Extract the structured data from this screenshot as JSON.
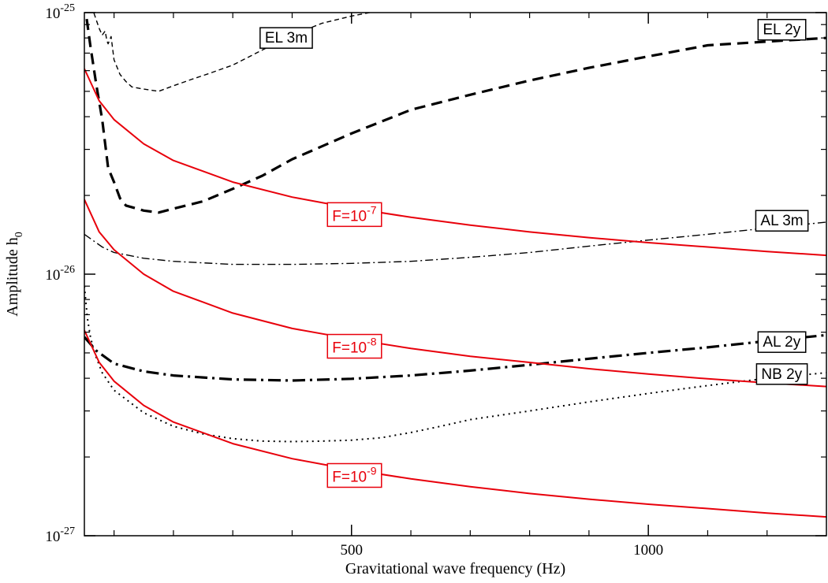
{
  "chart_data": {
    "type": "line",
    "xlabel": "Gravitational wave frequency (Hz)",
    "ylabel": {
      "base": "Amplitude h",
      "sub": "0"
    },
    "xlim": [
      50,
      1300
    ],
    "ylim": [
      1e-27,
      1e-25
    ],
    "y_scale": "log",
    "grid": false,
    "x_ticks": [
      {
        "value": 500,
        "label": "500"
      },
      {
        "value": 1000,
        "label": "1000"
      }
    ],
    "x_minor_ticks": [
      100,
      200,
      300,
      400,
      600,
      700,
      800,
      900,
      1100,
      1200
    ],
    "y_ticks": [
      {
        "value": 1e-25,
        "base": "10",
        "exp": "-25"
      },
      {
        "value": 1e-26,
        "base": "10",
        "exp": "-26"
      },
      {
        "value": 1e-27,
        "base": "10",
        "exp": "-27"
      }
    ],
    "series": [
      {
        "name": "EL 3m",
        "color": "#000000",
        "style": "thin-dash",
        "x": [
          50,
          62,
          75,
          80,
          85,
          88,
          90,
          95,
          100,
          110,
          120,
          130,
          150,
          175,
          200,
          230,
          260,
          300,
          350,
          400,
          450,
          500,
          550
        ],
        "y": [
          1.1e-25,
          1.06e-25,
          8.7e-26,
          8.2e-26,
          8.5e-26,
          7.8e-26,
          7.6e-26,
          8.1e-26,
          6.6e-26,
          5.8e-26,
          5.45e-26,
          5.2e-26,
          5.1e-26,
          5e-26,
          5.25e-26,
          5.55e-26,
          5.85e-26,
          6.3e-26,
          7.2e-26,
          8.2e-26,
          9.1e-26,
          9.7e-26,
          1.02e-25
        ]
      },
      {
        "name": "EL 2y",
        "color": "#000000",
        "style": "thick-dash",
        "x": [
          50,
          60,
          70,
          80,
          90,
          100,
          110,
          120,
          150,
          175,
          200,
          250,
          300,
          350,
          400,
          500,
          600,
          700,
          800,
          900,
          1000,
          1100,
          1200,
          1300
        ],
        "y": [
          1.1e-25,
          7.5e-26,
          5.3e-26,
          3.9e-26,
          2.55e-26,
          2.25e-26,
          1.95e-26,
          1.83e-26,
          1.75e-26,
          1.72e-26,
          1.78e-26,
          1.9e-26,
          2.12e-26,
          2.38e-26,
          2.75e-26,
          3.45e-26,
          4.25e-26,
          4.85e-26,
          5.5e-26,
          6.15e-26,
          6.8e-26,
          7.5e-26,
          7.75e-26,
          8e-26
        ]
      },
      {
        "name": "AL 3m",
        "color": "#000000",
        "style": "thin-dash-dot",
        "x": [
          50,
          80,
          100,
          150,
          200,
          300,
          400,
          500,
          600,
          700,
          800,
          900,
          1000,
          1100,
          1200,
          1300
        ],
        "y": [
          1.42e-26,
          1.27e-26,
          1.21e-26,
          1.15e-26,
          1.12e-26,
          1.09e-26,
          1.09e-26,
          1.1e-26,
          1.12e-26,
          1.16e-26,
          1.21e-26,
          1.28e-26,
          1.35e-26,
          1.42e-26,
          1.5e-26,
          1.58e-26
        ]
      },
      {
        "name": "AL 2y",
        "color": "#000000",
        "style": "thick-dash-dot",
        "x": [
          50,
          70,
          100,
          150,
          200,
          300,
          400,
          500,
          600,
          700,
          800,
          900,
          1000,
          1100,
          1200,
          1300
        ],
        "y": [
          5.75e-27,
          5.1e-27,
          4.55e-27,
          4.25e-27,
          4.1e-27,
          3.96e-27,
          3.92e-27,
          3.98e-27,
          4.1e-27,
          4.28e-27,
          4.5e-27,
          4.75e-27,
          5e-27,
          5.25e-27,
          5.55e-27,
          5.85e-27
        ]
      },
      {
        "name": "NB 2y",
        "color": "#000000",
        "style": "dotted",
        "x": [
          50,
          55,
          60,
          65,
          70,
          80,
          100,
          150,
          200,
          250,
          300,
          350,
          400,
          450,
          500,
          550,
          600,
          650,
          700,
          800,
          900,
          1000,
          1100,
          1200,
          1300
        ],
        "y": [
          9e-27,
          6.8e-27,
          5.8e-27,
          5.2e-27,
          4.8e-27,
          4.2e-27,
          3.6e-27,
          2.95e-27,
          2.62e-27,
          2.45e-27,
          2.35e-27,
          2.3e-27,
          2.29e-27,
          2.3e-27,
          2.32e-27,
          2.37e-27,
          2.48e-27,
          2.62e-27,
          2.78e-27,
          3e-27,
          3.25e-27,
          3.5e-27,
          3.75e-27,
          4e-27,
          4.2e-27
        ]
      },
      {
        "name": "F=10-7",
        "color": "#e8000b",
        "style": "solid",
        "x": [
          50,
          75,
          100,
          150,
          200,
          300,
          400,
          500,
          600,
          700,
          800,
          900,
          1000,
          1100,
          1200,
          1300
        ],
        "y": [
          6.1e-26,
          4.6e-26,
          3.9e-26,
          3.15e-26,
          2.72e-26,
          2.25e-26,
          1.97e-26,
          1.79e-26,
          1.65e-26,
          1.54e-26,
          1.45e-26,
          1.38e-26,
          1.32e-26,
          1.27e-26,
          1.22e-26,
          1.18e-26
        ]
      },
      {
        "name": "F=10-8",
        "color": "#e8000b",
        "style": "solid",
        "x": [
          50,
          75,
          100,
          150,
          200,
          300,
          400,
          500,
          600,
          700,
          800,
          900,
          1000,
          1100,
          1200,
          1300
        ],
        "y": [
          1.93e-26,
          1.45e-26,
          1.24e-26,
          1e-26,
          8.6e-27,
          7.1e-27,
          6.2e-27,
          5.65e-27,
          5.2e-27,
          4.85e-27,
          4.6e-27,
          4.35e-27,
          4.15e-27,
          3.98e-27,
          3.84e-27,
          3.72e-27
        ]
      },
      {
        "name": "F=10-9",
        "color": "#e8000b",
        "style": "solid",
        "x": [
          50,
          75,
          100,
          150,
          200,
          300,
          400,
          500,
          600,
          700,
          800,
          900,
          1000,
          1100,
          1200,
          1300
        ],
        "y": [
          6.1e-27,
          4.6e-27,
          3.9e-27,
          3.15e-27,
          2.72e-27,
          2.25e-27,
          1.97e-27,
          1.79e-27,
          1.65e-27,
          1.54e-27,
          1.45e-27,
          1.38e-27,
          1.32e-27,
          1.27e-27,
          1.22e-27,
          1.18e-27
        ]
      }
    ],
    "annotations": [
      {
        "series": "EL 3m",
        "text": "EL 3m",
        "color": "#000000",
        "x": 390,
        "y": 8e-26
      },
      {
        "series": "EL 2y",
        "text": "EL 2y",
        "color": "#000000",
        "x": 1225,
        "y": 8.6e-26
      },
      {
        "series": "AL 3m",
        "text": "AL 3m",
        "color": "#000000",
        "x": 1225,
        "y": 1.6e-26
      },
      {
        "series": "AL 2y",
        "text": "AL 2y",
        "color": "#000000",
        "x": 1225,
        "y": 5.5e-27
      },
      {
        "series": "NB 2y",
        "text": "NB 2y",
        "color": "#000000",
        "x": 1225,
        "y": 4.15e-27
      },
      {
        "series": "F=10-7",
        "text": "F=10",
        "exp": "-7",
        "color": "#e8000b",
        "x": 505,
        "y": 1.69e-26
      },
      {
        "series": "F=10-8",
        "text": "F=10",
        "exp": "-8",
        "color": "#e8000b",
        "x": 505,
        "y": 5.3e-27
      },
      {
        "series": "F=10-9",
        "text": "F=10",
        "exp": "-9",
        "color": "#e8000b",
        "x": 505,
        "y": 1.7e-27
      }
    ]
  }
}
